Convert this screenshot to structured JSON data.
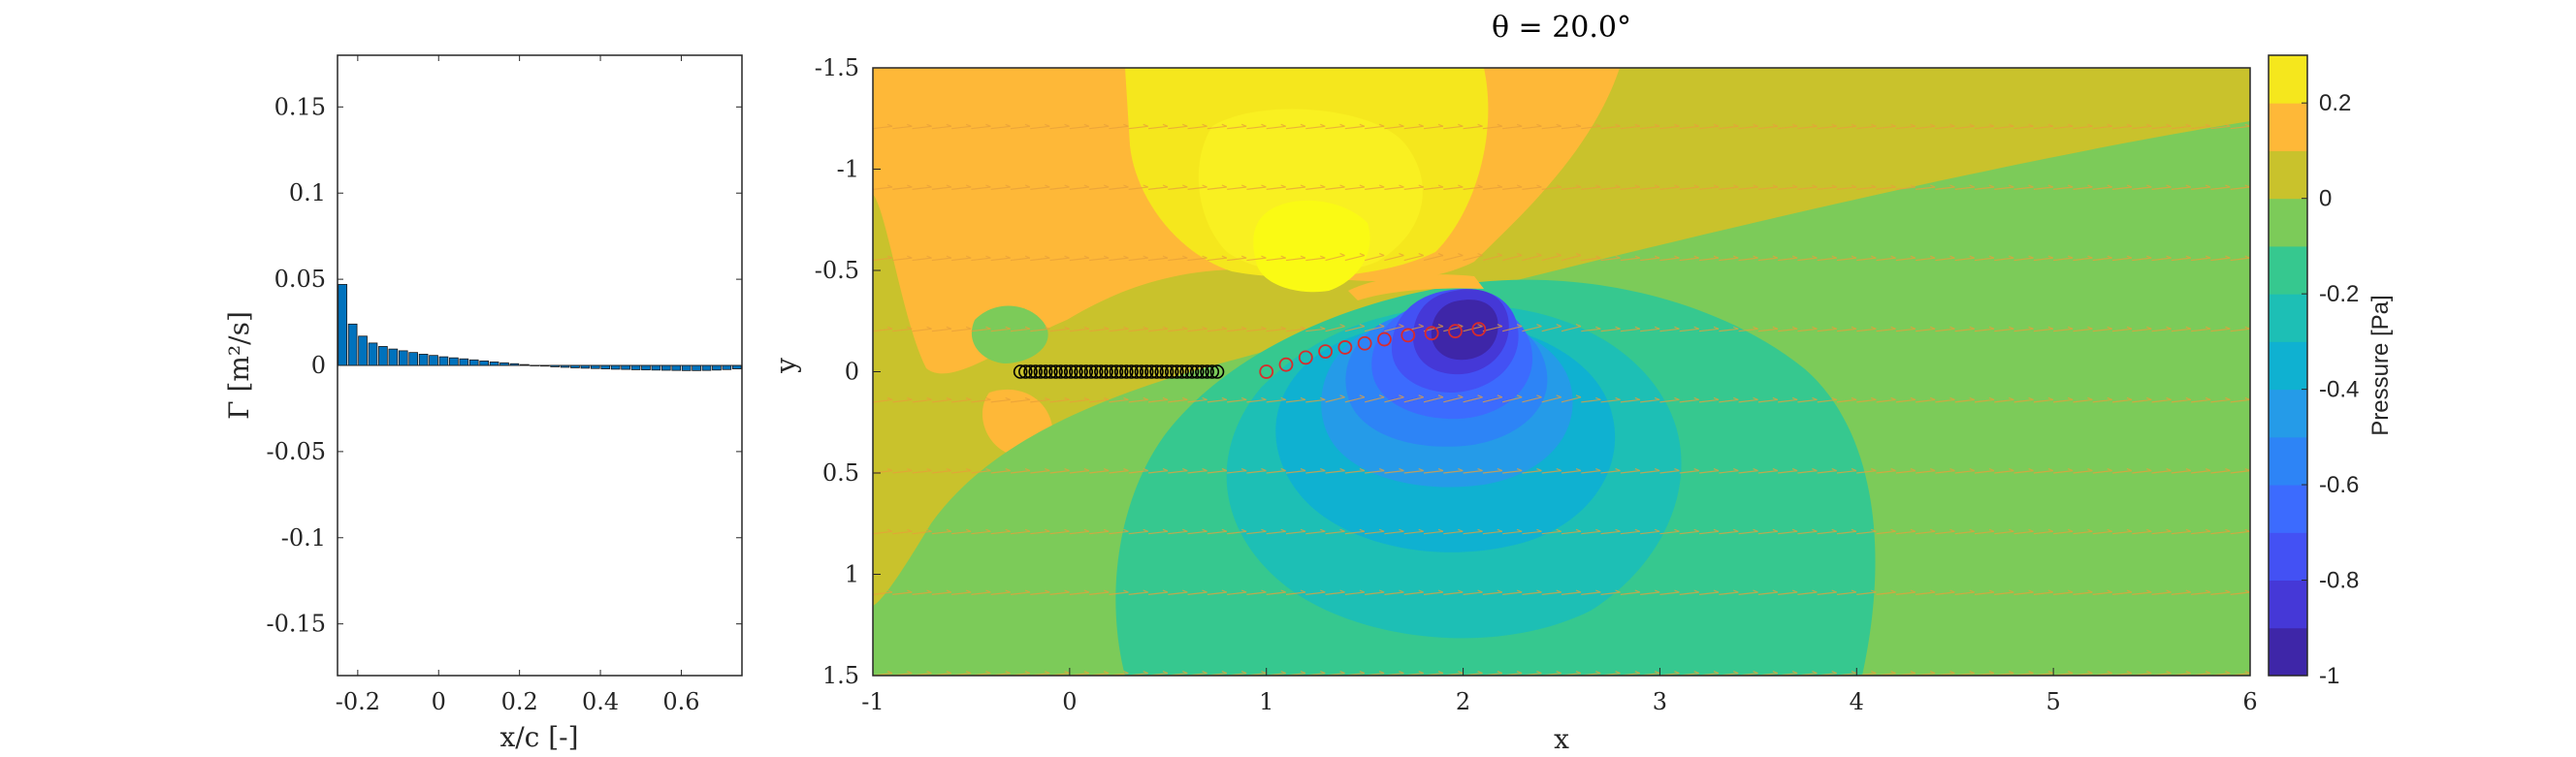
{
  "chart_data": [
    {
      "type": "bar",
      "title": "",
      "xlabel": "x/c [-]",
      "ylabel": "Γ [m²/s]",
      "xlim": [
        -0.25,
        0.75
      ],
      "ylim": [
        -0.18,
        0.18
      ],
      "xticks": [
        -0.2,
        0,
        0.2,
        0.4,
        0.6
      ],
      "xtick_labels": [
        "-0.2",
        "0",
        "0.2",
        "0.4",
        "0.6"
      ],
      "yticks": [
        0.15,
        0.1,
        0.05,
        0,
        -0.05,
        -0.1,
        -0.15
      ],
      "ytick_labels": [
        "0.15",
        "0.1",
        "0.05",
        "0",
        "-0.05",
        "-0.1",
        "-0.15"
      ],
      "bar_color": "#0072BD",
      "x": [
        -0.2375,
        -0.2125,
        -0.1875,
        -0.1625,
        -0.1375,
        -0.1125,
        -0.0875,
        -0.0625,
        -0.0375,
        -0.0125,
        0.0125,
        0.0375,
        0.0625,
        0.0875,
        0.1125,
        0.1375,
        0.1625,
        0.1875,
        0.2125,
        0.2375,
        0.2625,
        0.2875,
        0.3125,
        0.3375,
        0.3625,
        0.3875,
        0.4125,
        0.4375,
        0.4625,
        0.4875,
        0.5125,
        0.5375,
        0.5625,
        0.5875,
        0.6125,
        0.6375,
        0.6625,
        0.6875,
        0.7125,
        0.7375
      ],
      "values": [
        0.047,
        0.024,
        0.017,
        0.013,
        0.011,
        0.0095,
        0.0085,
        0.0075,
        0.0065,
        0.0058,
        0.005,
        0.0044,
        0.0038,
        0.0032,
        0.0026,
        0.002,
        0.0015,
        0.001,
        0.0005,
        0.0,
        -0.0004,
        -0.0008,
        -0.0011,
        -0.0014,
        -0.0016,
        -0.0018,
        -0.002,
        -0.0022,
        -0.0023,
        -0.0025,
        -0.0026,
        -0.0027,
        -0.0028,
        -0.0029,
        -0.003,
        -0.003,
        -0.0029,
        -0.0027,
        -0.0024,
        -0.002
      ]
    },
    {
      "type": "heatmap",
      "title": "θ = 20.0°",
      "xlabel": "x",
      "ylabel": "y",
      "xlim": [
        -1,
        6
      ],
      "ylim": [
        -1.5,
        1.5
      ],
      "y_reversed": true,
      "xticks": [
        -1,
        0,
        1,
        2,
        3,
        4,
        5,
        6
      ],
      "xtick_labels": [
        "-1",
        "0",
        "1",
        "2",
        "3",
        "4",
        "5",
        "6"
      ],
      "yticks": [
        -1.5,
        -1,
        -0.5,
        0,
        0.5,
        1,
        1.5
      ],
      "ytick_labels": [
        "-1.5",
        "-1",
        "-0.5",
        "0",
        "0.5",
        "1",
        "1.5"
      ],
      "colorbar": {
        "label": "Pressure [Pa]",
        "range": [
          -1,
          0.3
        ],
        "ticks": [
          0.2,
          0,
          -0.2,
          -0.4,
          -0.6,
          -0.8,
          -1
        ],
        "tick_labels": [
          "0.2",
          "0",
          "-0.2",
          "-0.4",
          "-0.6",
          "-0.8",
          "-1"
        ],
        "levels": [
          {
            "min": -1.0,
            "max": -0.9,
            "color": "#3E26A8"
          },
          {
            "min": -0.9,
            "max": -0.8,
            "color": "#4538D7"
          },
          {
            "min": -0.8,
            "max": -0.7,
            "color": "#4351F4"
          },
          {
            "min": -0.7,
            "max": -0.6,
            "color": "#3C6BFE"
          },
          {
            "min": -0.6,
            "max": -0.5,
            "color": "#2D84F6"
          },
          {
            "min": -0.5,
            "max": -0.4,
            "color": "#259BE8"
          },
          {
            "min": -0.4,
            "max": -0.3,
            "color": "#0FB1D1"
          },
          {
            "min": -0.3,
            "max": -0.2,
            "color": "#1DBFB5"
          },
          {
            "min": -0.2,
            "max": -0.1,
            "color": "#36C88F"
          },
          {
            "min": -0.1,
            "max": 0.0,
            "color": "#7CCB59"
          },
          {
            "min": 0.0,
            "max": 0.1,
            "color": "#C9C22C"
          },
          {
            "min": 0.1,
            "max": 0.2,
            "color": "#FEB838"
          },
          {
            "min": 0.2,
            "max": 0.3,
            "color": "#F5E71D"
          }
        ]
      },
      "plate": {
        "x_start": -0.25,
        "x_end": 0.75,
        "y": 0,
        "marker_count": 40,
        "marker_color": "#000000"
      },
      "wake": {
        "marker_color": "#D92B2B",
        "x": [
          1.0,
          1.1,
          1.2,
          1.3,
          1.4,
          1.5,
          1.6,
          1.72,
          1.84,
          1.96,
          2.08
        ],
        "y": [
          0.0,
          -0.035,
          -0.07,
          -0.1,
          -0.12,
          -0.14,
          -0.16,
          -0.18,
          -0.19,
          -0.2,
          -0.21
        ]
      },
      "quiver": {
        "color": "#E8A03A",
        "rows_y": [
          -1.5,
          -1.2,
          -0.9,
          -0.55,
          -0.2,
          0.15,
          0.5,
          0.8,
          1.1,
          1.5
        ]
      }
    }
  ]
}
